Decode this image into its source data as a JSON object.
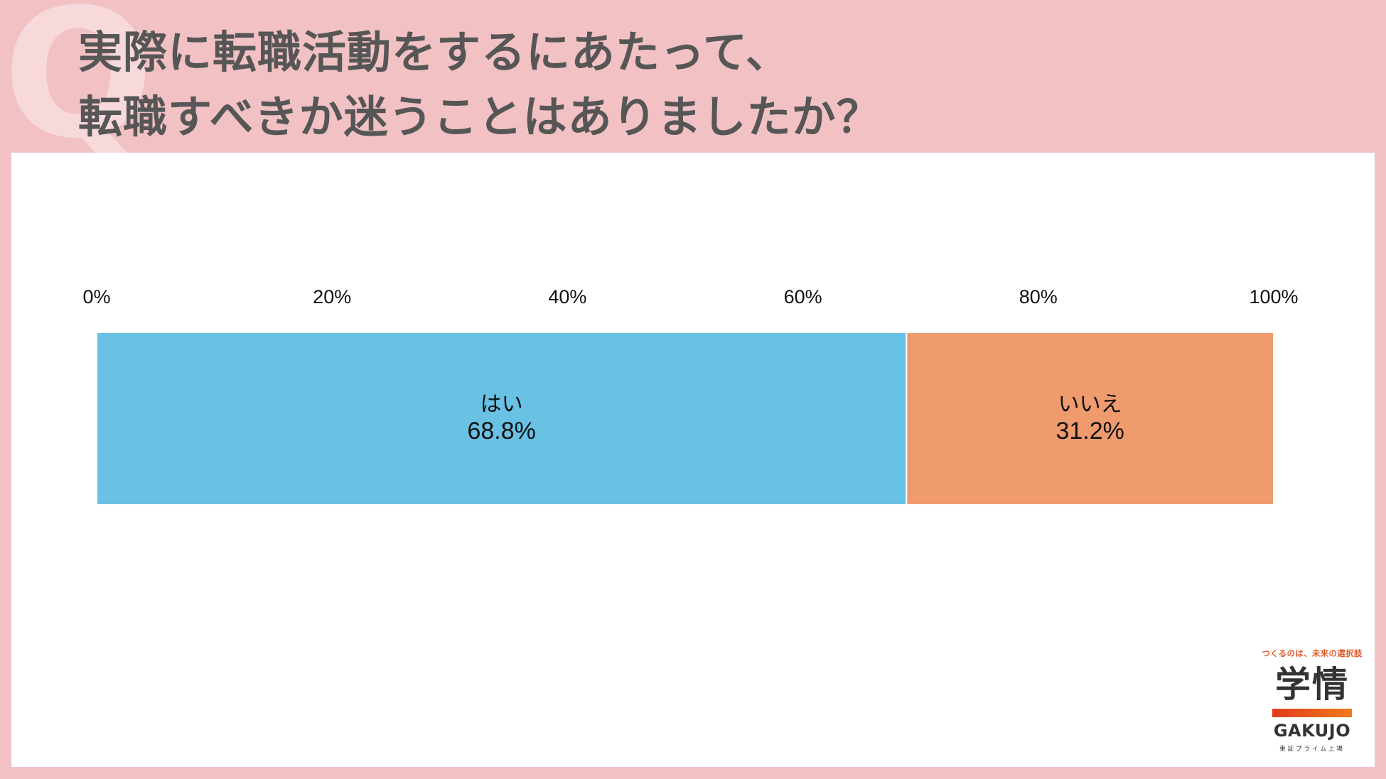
{
  "page": {
    "decoration": "Q",
    "title_lines": [
      "実際に転職活動をするにあたって、",
      "転職すべきか迷うことはありましたか？"
    ]
  },
  "chart_data": {
    "type": "bar",
    "orientation": "horizontal-stacked-100",
    "x_ticks": [
      "0%",
      "20%",
      "40%",
      "60%",
      "80%",
      "100%"
    ],
    "xlim": [
      0,
      100
    ],
    "series": [
      {
        "name": "はい",
        "value": 68.8,
        "label": "68.8%",
        "color": "#69c1e3"
      },
      {
        "name": "いいえ",
        "value": 31.2,
        "label": "31.2%",
        "color": "#ef9b6e"
      }
    ],
    "grid": false,
    "legend": "none"
  },
  "logo": {
    "tagline": "つくるのは、未来の選択肢",
    "kanji": "学情",
    "english": "GAKUJO",
    "sub": "東証プライム上場",
    "bar_colors": [
      "#e23a1e",
      "#f07a1a"
    ]
  }
}
